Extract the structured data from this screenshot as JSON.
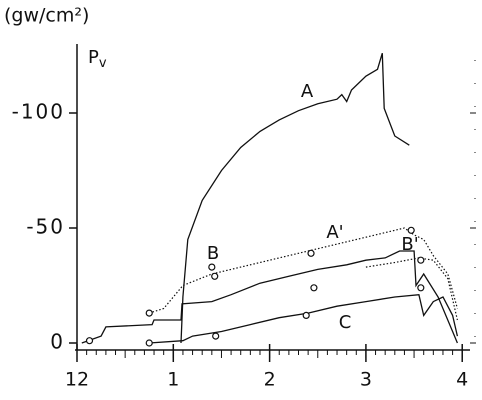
{
  "chart_data": {
    "type": "line",
    "y_unit": "(gw/cm²)",
    "y_symbol": "P",
    "y_symbol_sub": "v",
    "xlim": [
      0,
      4.06
    ],
    "ylim": [
      0,
      -130
    ],
    "xticks": [
      {
        "value": 0,
        "label": "12"
      },
      1,
      2,
      3,
      4
    ],
    "yticks": [
      0,
      -50,
      -100
    ],
    "series": [
      {
        "name": "A",
        "color": "#111",
        "style": "solid",
        "x": [
          1.08,
          1.1,
          1.15,
          1.3,
          1.5,
          1.7,
          1.9,
          2.1,
          2.3,
          2.5,
          2.7,
          2.75,
          2.8,
          2.85,
          3.0,
          3.12,
          3.17,
          3.19,
          3.3,
          3.45
        ],
        "values": [
          0,
          -20,
          -45,
          -62,
          -75,
          -85,
          -92,
          -97,
          -101,
          -104,
          -106,
          -108,
          -105,
          -110,
          -116,
          -119,
          -126,
          -102,
          -90,
          -86
        ]
      },
      {
        "name": "A'",
        "color": "#111",
        "style": "dotted",
        "x": [
          0.75,
          0.9,
          1.1,
          1.4,
          1.7,
          2.0,
          2.3,
          2.6,
          2.9,
          3.2,
          3.4,
          3.5,
          3.6,
          3.7,
          3.85,
          3.95
        ],
        "values": [
          -13,
          -15,
          -25,
          -30,
          -33,
          -36,
          -39,
          -42,
          -45,
          -48,
          -50,
          -47,
          -45,
          -38,
          -30,
          -15
        ]
      },
      {
        "name": "B",
        "color": "#111",
        "style": "solid",
        "x": [
          0.05,
          0.25,
          0.3,
          0.78,
          0.8,
          1.08,
          1.09,
          1.4,
          1.6,
          1.9,
          2.2,
          2.5,
          2.8,
          3.0,
          3.2,
          3.35,
          3.5,
          3.52,
          3.6,
          3.75,
          3.9,
          3.95
        ],
        "values": [
          0,
          -3,
          -7,
          -8,
          -10,
          -10,
          -17,
          -18,
          -21,
          -26,
          -29,
          -32,
          -34,
          -36,
          -37,
          -40,
          -40,
          -25,
          -30,
          -20,
          -5,
          0
        ]
      },
      {
        "name": "B'",
        "color": "#111",
        "style": "dotted",
        "x": [
          3.0,
          3.3,
          3.55,
          3.7,
          3.85,
          3.95
        ],
        "values": [
          -33,
          -35,
          -37,
          -36,
          -28,
          -10
        ]
      },
      {
        "name": "C",
        "color": "#111",
        "style": "solid",
        "x": [
          0.75,
          1.1,
          1.2,
          1.5,
          1.8,
          2.1,
          2.4,
          2.7,
          3.0,
          3.3,
          3.55,
          3.6,
          3.7,
          3.8,
          3.9,
          3.95
        ],
        "values": [
          0,
          -1,
          -3,
          -5,
          -8,
          -11,
          -13,
          -16,
          -18,
          -20,
          -21,
          -12,
          -18,
          -20,
          -12,
          -3
        ]
      }
    ],
    "points": {
      "x": [
        0.13,
        0.75,
        0.75,
        1.4,
        1.43,
        1.44,
        2.38,
        2.43,
        2.46,
        3.47,
        3.57,
        3.57
      ],
      "values": [
        -1,
        -13,
        0,
        -33,
        -29,
        -3,
        -12,
        -39,
        -24,
        -49,
        -36,
        -24
      ]
    }
  }
}
